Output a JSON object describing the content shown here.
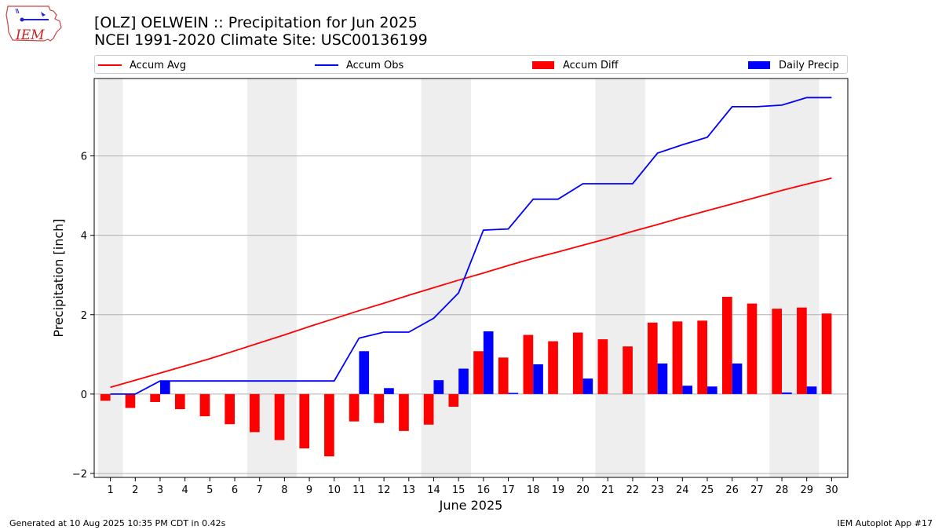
{
  "header": {
    "title_line1": "[OLZ] OELWEIN :: Precipitation for Jun 2025",
    "title_line2": "NCEI 1991-2020 Climate Site: USC00136199"
  },
  "logo": {
    "text": "IEM"
  },
  "footer": {
    "generated": "Generated at 10 Aug 2025 10:35 PM CDT in 0.42s",
    "app": "IEM Autoplot App #17"
  },
  "colors": {
    "accum_avg": "#ff0000",
    "accum_obs": "#0000ff",
    "accum_diff": "#ff0000",
    "daily_precip": "#0000ff",
    "weekend_shade": "#eeeeee",
    "grid": "#b0b0b0"
  },
  "chart_data": {
    "type": "bar",
    "title": "[OLZ] OELWEIN :: Precipitation for Jun 2025",
    "subtitle": "NCEI 1991-2020 Climate Site: USC00136199",
    "xlabel": "June 2025",
    "ylabel": "Precipitation [inch]",
    "ylim": [
      -2.1,
      7.95
    ],
    "yticks": [
      -2,
      0,
      2,
      4,
      6
    ],
    "grid": "horizontal",
    "legend_position": "top",
    "x": [
      "1",
      "2",
      "3",
      "4",
      "5",
      "6",
      "7",
      "8",
      "9",
      "10",
      "11",
      "12",
      "13",
      "14",
      "15",
      "16",
      "17",
      "18",
      "19",
      "20",
      "21",
      "22",
      "23",
      "24",
      "25",
      "26",
      "27",
      "28",
      "29",
      "30"
    ],
    "weekend_shading": [
      [
        1,
        1
      ],
      [
        7,
        8
      ],
      [
        14,
        15
      ],
      [
        21,
        22
      ],
      [
        28,
        29
      ]
    ],
    "series": [
      {
        "name": "Accum Avg",
        "kind": "line",
        "values": [
          0.17,
          0.35,
          0.53,
          0.71,
          0.89,
          1.09,
          1.29,
          1.49,
          1.7,
          1.9,
          2.1,
          2.29,
          2.49,
          2.68,
          2.87,
          3.05,
          3.24,
          3.42,
          3.58,
          3.75,
          3.92,
          4.1,
          4.27,
          4.45,
          4.62,
          4.79,
          4.96,
          5.13,
          5.29,
          5.44
        ]
      },
      {
        "name": "Accum Obs",
        "kind": "line",
        "values": [
          0.0,
          0.0,
          0.33,
          0.33,
          0.33,
          0.33,
          0.33,
          0.33,
          0.33,
          0.33,
          1.41,
          1.56,
          1.56,
          1.91,
          2.55,
          4.13,
          4.16,
          4.91,
          4.91,
          5.3,
          5.3,
          5.3,
          6.07,
          6.28,
          6.47,
          7.24,
          7.24,
          7.28,
          7.47,
          7.47
        ]
      },
      {
        "name": "Accum Diff",
        "kind": "bar",
        "values": [
          -0.17,
          -0.35,
          -0.2,
          -0.38,
          -0.56,
          -0.76,
          -0.96,
          -1.16,
          -1.37,
          -1.57,
          -0.69,
          -0.73,
          -0.93,
          -0.77,
          -0.32,
          1.08,
          0.92,
          1.49,
          1.33,
          1.55,
          1.38,
          1.2,
          1.8,
          1.83,
          1.85,
          2.45,
          2.28,
          2.15,
          2.18,
          2.03
        ]
      },
      {
        "name": "Daily Precip",
        "kind": "bar",
        "values": [
          0.0,
          0.0,
          0.33,
          0.0,
          0.0,
          0.0,
          0.0,
          0.0,
          0.0,
          0.0,
          1.08,
          0.15,
          0.0,
          0.35,
          0.64,
          1.58,
          0.03,
          0.75,
          0.0,
          0.39,
          0.0,
          0.0,
          0.77,
          0.21,
          0.19,
          0.77,
          0.0,
          0.04,
          0.19,
          0.0
        ]
      }
    ]
  }
}
